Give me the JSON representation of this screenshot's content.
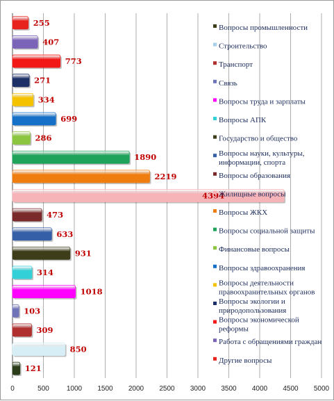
{
  "chart_data": {
    "type": "bar",
    "orientation": "horizontal",
    "xlim": [
      0,
      5000
    ],
    "x_ticks": [
      "0",
      "500",
      "1000",
      "1500",
      "2000",
      "2500",
      "3000",
      "3500",
      "4000",
      "4500",
      "5000"
    ],
    "grid": "vertical",
    "legend_position": "right",
    "categories": [
      "Вопросы промышленности",
      "Строительство",
      "Транспорт",
      "Связь",
      "Вопросы труда и зарплаты",
      "Вопросы АПК",
      "Государство и общество",
      "Вопросы науки, культуры, информации, спорта",
      "Вопросы образования",
      "Жилищные вопросы",
      "Вопросы ЖКХ",
      "Вопросы социальной защиты",
      "Финансовые вопросы",
      "Вопросы здравоохранения",
      "Вопросы деятельности правоохранительных органов",
      "Вопросы экологии и природопользования",
      "Вопросы экономической реформы",
      "Работа с обращениями граждан",
      "Другие вопросы"
    ],
    "values": [
      255,
      407,
      773,
      271,
      334,
      699,
      286,
      1890,
      2219,
      4394,
      473,
      633,
      931,
      314,
      1018,
      103,
      309,
      850,
      121
    ],
    "value_labels": [
      "255",
      "407",
      "773",
      "271",
      "334",
      "699",
      "286",
      "1890",
      "2219",
      "4394",
      "473",
      "633",
      "931",
      "314",
      "1018",
      "103",
      "309",
      "850",
      "121"
    ],
    "colors": [
      "#e8231e",
      "#7b63b8",
      "#f21818",
      "#1c2f66",
      "#f5c200",
      "#1570c8",
      "#8cc640",
      "#1fa35a",
      "#f07d10",
      "#f6b3b8",
      "#7a2a2a",
      "#3560a8",
      "#3d3d1a",
      "#33d0d8",
      "#ff00ff",
      "#6f73b8",
      "#b03030",
      "#d8eef6",
      "#2b3d1a"
    ],
    "legend": [
      {
        "lines": [
          "Вопросы промышленности"
        ],
        "color": "#3d3d1a"
      },
      {
        "lines": [
          "Строительство"
        ],
        "color": "#a9cfe8"
      },
      {
        "lines": [
          "Транспорт"
        ],
        "color": "#b03030"
      },
      {
        "lines": [
          "Связь"
        ],
        "color": "#6f73b8"
      },
      {
        "lines": [
          "Вопросы труда и зарплаты"
        ],
        "color": "#ff00ff"
      },
      {
        "lines": [
          "Вопросы АПК"
        ],
        "color": "#33d0d8"
      },
      {
        "lines": [
          "Государство и общество"
        ],
        "color": "#3d3d1a"
      },
      {
        "lines": [
          "Вопросы науки, культуры,",
          "информации, спорта"
        ],
        "color": "#3560a8"
      },
      {
        "lines": [
          "Вопросы образования"
        ],
        "color": "#7a2a2a"
      },
      {
        "lines": [
          "Жилищные вопросы"
        ],
        "color": "#f6b3b8"
      },
      {
        "lines": [
          "Вопросы ЖКХ"
        ],
        "color": "#f07d10"
      },
      {
        "lines": [
          "Вопросы социальной защиты"
        ],
        "color": "#1fa35a"
      },
      {
        "lines": [
          "Финансовые вопросы"
        ],
        "color": "#8cc640"
      },
      {
        "lines": [
          "Вопросы здравоохранения"
        ],
        "color": "#1570c8"
      },
      {
        "lines": [
          "Вопросы деятельности",
          "правоохранительных органов"
        ],
        "color": "#f5c200"
      },
      {
        "lines": [
          "Вопросы экологии и",
          "природопользования"
        ],
        "color": "#1c2f66"
      },
      {
        "lines": [
          "Вопросы экономической",
          "реформы"
        ],
        "color": "#f21818"
      },
      {
        "lines": [
          "Работа с обращениями граждан"
        ],
        "color": "#7b63b8"
      },
      {
        "lines": [
          "Другие вопросы"
        ],
        "color": "#e8231e"
      }
    ]
  }
}
